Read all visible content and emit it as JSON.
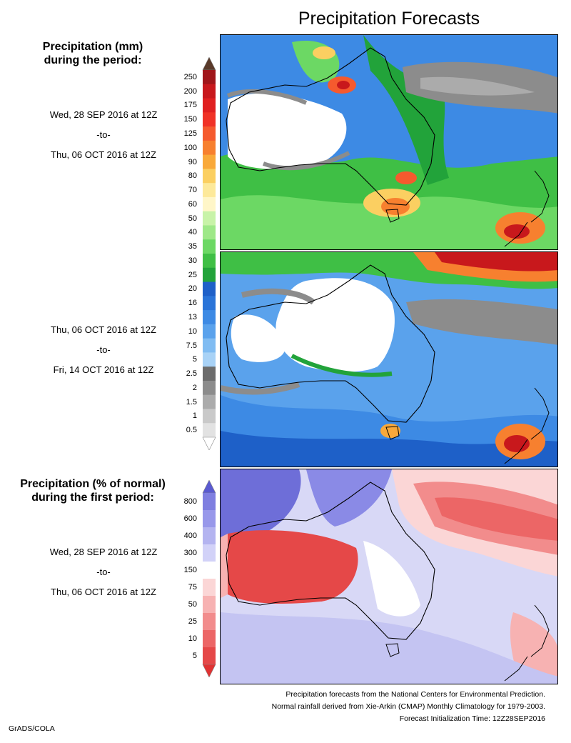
{
  "title": "Precipitation Forecasts",
  "legend_mm": {
    "heading_line1": "Precipitation (mm)",
    "heading_line2": "during the period:",
    "ticks": [
      "250",
      "200",
      "175",
      "150",
      "125",
      "100",
      "90",
      "80",
      "70",
      "60",
      "50",
      "40",
      "35",
      "30",
      "25",
      "20",
      "16",
      "13",
      "10",
      "7.5",
      "5",
      "2.5",
      "2",
      "1.5",
      "1",
      "0.5"
    ],
    "colors": [
      "#a0161a",
      "#c8181c",
      "#e02020",
      "#f03226",
      "#f55a2e",
      "#f7802f",
      "#f9a93a",
      "#fbcf61",
      "#fde99a",
      "#fff6c8",
      "#c8f3a8",
      "#9ee888",
      "#6cd864",
      "#3fbf45",
      "#22a33a",
      "#1e60c8",
      "#2a74d8",
      "#3d8ae4",
      "#5aa2ec",
      "#80bcf2",
      "#a8d2f6",
      "#6c6c6c",
      "#8c8c8c",
      "#ababab",
      "#c9c9c9",
      "#e2e2e2"
    ],
    "top_arrow_color": "#5a3a2a",
    "bottom_arrow_color": "#ffffff"
  },
  "periods": [
    {
      "start": "Wed, 28 SEP 2016 at 12Z",
      "sep": "-to-",
      "end": "Thu, 06 OCT 2016 at 12Z"
    },
    {
      "start": "Thu, 06 OCT 2016 at 12Z",
      "sep": "-to-",
      "end": "Fri, 14 OCT 2016 at 12Z"
    },
    {
      "start": "Wed, 28 SEP 2016 at 12Z",
      "sep": "-to-",
      "end": "Thu, 06 OCT 2016 at 12Z"
    }
  ],
  "legend_pct": {
    "heading_line1": "Precipitation (% of normal)",
    "heading_line2": "during the first period:",
    "ticks": [
      "800",
      "600",
      "400",
      "300",
      "150",
      "75",
      "50",
      "25",
      "10",
      "5"
    ],
    "colors": [
      "#7f7fe0",
      "#9898ea",
      "#b4b4f0",
      "#d2d2f8",
      "#ffffff",
      "#fbd6d6",
      "#f7b2b2",
      "#f28c8c",
      "#ec6666",
      "#e54848"
    ],
    "top_arrow_color": "#5a5ad0",
    "bottom_arrow_color": "#e03232"
  },
  "maps": [
    {
      "name": "first period precipitation",
      "background": "#3d8ae4"
    },
    {
      "name": "second period precipitation",
      "background": "#5aa2ec"
    },
    {
      "name": "percent of normal",
      "background": "#d8d8f6"
    }
  ],
  "footer": {
    "line1": "Precipitation forecasts from the National Centers for Environmental Prediction.",
    "line2": "Normal rainfall derived from Xie-Arkin (CMAP) Monthly Climatology for 1979-2003.",
    "line3": "Forecast Initialization Time: 12Z28SEP2016"
  },
  "credit": "GrADS/COLA"
}
